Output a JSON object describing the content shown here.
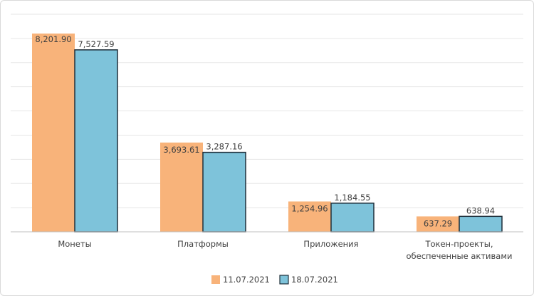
{
  "chart_data": {
    "type": "bar",
    "categories": [
      [
        "Монеты"
      ],
      [
        "Платформы"
      ],
      [
        "Приложения"
      ],
      [
        "Токен-проекты,",
        "обеспеченные активами"
      ]
    ],
    "series": [
      {
        "name": "11.07.2021",
        "values": [
          8201.9,
          3693.61,
          1254.96,
          637.29
        ],
        "labels": [
          "8,201.90",
          "3,693.61",
          "1,254.96",
          "637.29"
        ],
        "color": "#F8B37A",
        "stroke": "#F8B37A"
      },
      {
        "name": "18.07.2021",
        "values": [
          7527.59,
          3287.16,
          1184.55,
          638.94
        ],
        "labels": [
          "7,527.59",
          "3,287.16",
          "1,184.55",
          "638.94"
        ],
        "color": "#7EC3DA",
        "stroke": "#1f2f3a"
      }
    ],
    "ylim": [
      0,
      9000
    ],
    "grid": true,
    "legend": "bottom"
  }
}
